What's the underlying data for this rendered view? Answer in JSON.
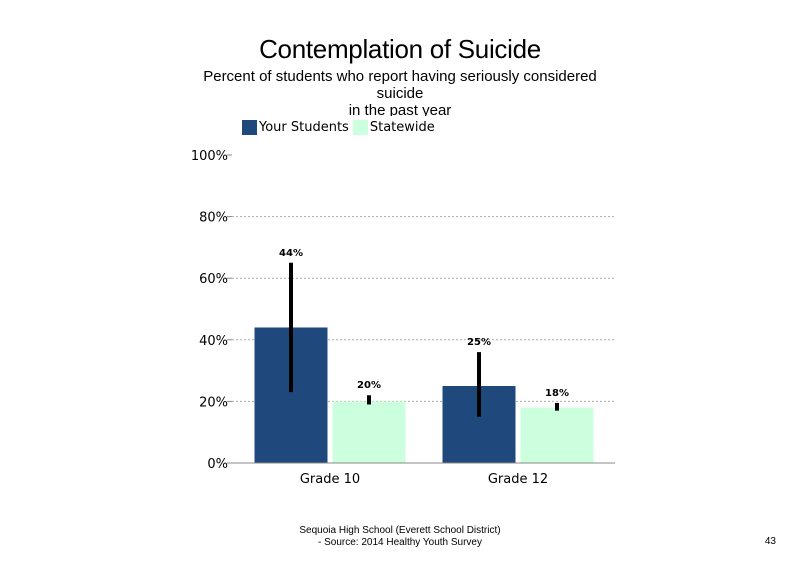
{
  "chart_data": {
    "type": "bar",
    "title": "Contemplation of Suicide",
    "subtitle_lines": [
      "Percent of students who report having seriously considered",
      "suicide",
      "in the past year"
    ],
    "categories": [
      "Grade 10",
      "Grade 12"
    ],
    "series": [
      {
        "name": "Your Students",
        "color": "#1F497D",
        "values": [
          44,
          25
        ],
        "labels": [
          "44%",
          "25%"
        ],
        "error_low": [
          23,
          15
        ],
        "error_high": [
          65,
          36
        ]
      },
      {
        "name": "Statewide",
        "color": "#CCFFDD",
        "values": [
          20,
          18
        ],
        "labels": [
          "20%",
          "18%"
        ],
        "error_low": [
          19,
          17
        ],
        "error_high": [
          22,
          19.5
        ]
      }
    ],
    "ylim": [
      0,
      100
    ],
    "yticks": [
      0,
      20,
      40,
      60,
      80,
      100
    ],
    "ytick_labels": [
      "0%",
      "20%",
      "40%",
      "60%",
      "80%",
      "100%"
    ],
    "grid": true,
    "legend_position": "top-left",
    "xlabel": "",
    "ylabel": ""
  },
  "footer": {
    "line1": "Sequoia High School (Everett School District)",
    "line2": "- Source: 2014 Healthy Youth Survey"
  },
  "page_number": "43"
}
